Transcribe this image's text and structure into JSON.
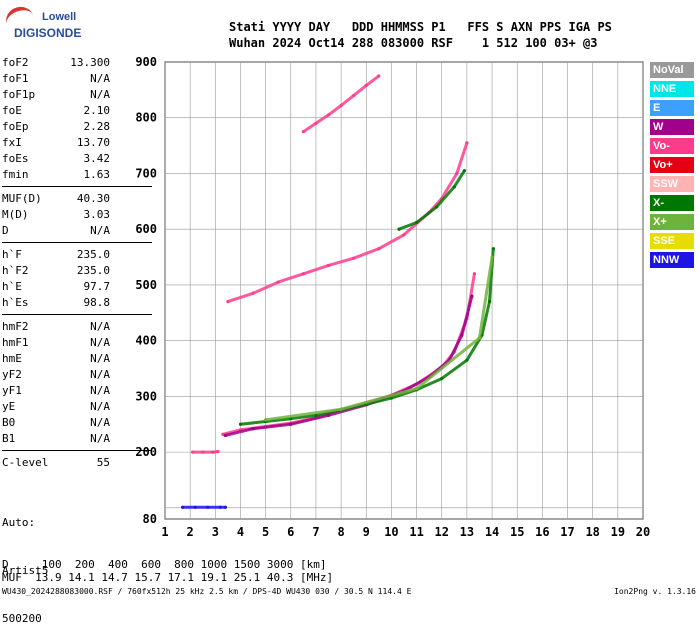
{
  "logo": {
    "brand": "Lowell",
    "product": "DIGISONDE"
  },
  "header": {
    "row1": "Stati YYYY DAY   DDD HHMMSS P1   FFS S AXN PPS IGA PS",
    "row2": "Wuhan 2024 Oct14 288 083000 RSF    1 512 100 03+ @3"
  },
  "params": [
    {
      "key": "foF2",
      "value": "13.300"
    },
    {
      "key": "foF1",
      "value": "N/A"
    },
    {
      "key": "foF1p",
      "value": "N/A"
    },
    {
      "key": "foE",
      "value": "2.10"
    },
    {
      "key": "foEp",
      "value": "2.28"
    },
    {
      "key": "fxI",
      "value": "13.70"
    },
    {
      "key": "foEs",
      "value": "3.42"
    },
    {
      "key": "fmin",
      "value": "1.63"
    },
    {
      "key": "MUF(D)",
      "value": "40.30"
    },
    {
      "key": "M(D)",
      "value": "3.03"
    },
    {
      "key": "D",
      "value": "N/A"
    },
    {
      "key": "h`F",
      "value": "235.0"
    },
    {
      "key": "h`F2",
      "value": "235.0"
    },
    {
      "key": "h`E",
      "value": "97.7"
    },
    {
      "key": "h`Es",
      "value": "98.8"
    },
    {
      "key": "hmF2",
      "value": "N/A"
    },
    {
      "key": "hmF1",
      "value": "N/A"
    },
    {
      "key": "hmE",
      "value": "N/A"
    },
    {
      "key": "yF2",
      "value": "N/A"
    },
    {
      "key": "yF1",
      "value": "N/A"
    },
    {
      "key": "yE",
      "value": "N/A"
    },
    {
      "key": "B0",
      "value": "N/A"
    },
    {
      "key": "B1",
      "value": "N/A"
    },
    {
      "key": "C-level",
      "value": "55"
    }
  ],
  "autoscaling": {
    "line1": "Auto:",
    "line2": "Artist5",
    "line3": "500200"
  },
  "footer": {
    "d_row": "D     100  200  400  600  800 1000 1500 3000 [km]",
    "muf_row": "MUF  13.9 14.1 14.7 15.7 17.1 19.1 25.1 40.3 [MHz]"
  },
  "meta": "WU430_2024288083000.RSF / 760fx512h 25 kHz 2.5 km / DPS-4D WU430 030 / 30.5 N 114.4 E",
  "version": "Ion2Png v. 1.3.16",
  "legend": [
    {
      "label": "NoVal",
      "color": "#999999"
    },
    {
      "label": "NNE",
      "color": "#00e5e5"
    },
    {
      "label": "E",
      "color": "#3ca0ff"
    },
    {
      "label": "W",
      "color": "#a0008c"
    },
    {
      "label": "Vo-",
      "color": "#ff3c8c"
    },
    {
      "label": "Vo+",
      "color": "#e60014"
    },
    {
      "label": "SSW",
      "color": "#ffb4b4"
    },
    {
      "label": "X-",
      "color": "#007800"
    },
    {
      "label": "X+",
      "color": "#6eb43c"
    },
    {
      "label": "SSE",
      "color": "#e6dc00"
    },
    {
      "label": "NNW",
      "color": "#1e14e6"
    }
  ],
  "chart_data": {
    "type": "scatter",
    "xlim": [
      1,
      20
    ],
    "ylim": [
      80,
      900
    ],
    "xticks": [
      1,
      2,
      3,
      4,
      5,
      6,
      7,
      8,
      9,
      10,
      11,
      12,
      13,
      14,
      15,
      16,
      17,
      18,
      19,
      20
    ],
    "yticks": [
      80,
      100,
      200,
      300,
      400,
      500,
      600,
      700,
      800,
      900
    ],
    "ytick_labels": [
      "80",
      "",
      "200",
      "300",
      "400",
      "500",
      "600",
      "700",
      "800",
      "900"
    ],
    "grid": true,
    "xlabel": "",
    "ylabel": "",
    "series": [
      {
        "name": "Vo-",
        "color": "#ff3c8c",
        "points": [
          [
            3.3,
            232
          ],
          [
            4,
            240
          ],
          [
            5,
            246
          ],
          [
            6,
            252
          ],
          [
            7,
            262
          ],
          [
            8,
            275
          ],
          [
            9,
            288
          ],
          [
            10,
            302
          ],
          [
            11,
            322
          ],
          [
            12,
            352
          ],
          [
            12.5,
            380
          ],
          [
            13,
            440
          ],
          [
            13.3,
            520
          ]
        ]
      },
      {
        "name": "W",
        "color": "#a0008c",
        "points": [
          [
            3.4,
            230
          ],
          [
            4.5,
            242
          ],
          [
            6,
            250
          ],
          [
            7.5,
            266
          ],
          [
            9,
            285
          ],
          [
            10.5,
            310
          ],
          [
            11.5,
            335
          ],
          [
            12.3,
            365
          ],
          [
            12.8,
            410
          ],
          [
            13.2,
            480
          ]
        ]
      },
      {
        "name": "X-",
        "color": "#007800",
        "points": [
          [
            4,
            250
          ],
          [
            5,
            255
          ],
          [
            6,
            260
          ],
          [
            7,
            266
          ],
          [
            8,
            276
          ],
          [
            9,
            286
          ],
          [
            10,
            297
          ],
          [
            11,
            312
          ],
          [
            12,
            332
          ],
          [
            13,
            365
          ],
          [
            13.6,
            410
          ],
          [
            13.9,
            470
          ],
          [
            14.05,
            565
          ]
        ]
      },
      {
        "name": "X+",
        "color": "#6eb43c",
        "points": [
          [
            5,
            258
          ],
          [
            8,
            277
          ],
          [
            11,
            314
          ],
          [
            13.5,
            405
          ],
          [
            14,
            550
          ]
        ]
      },
      {
        "name": "Vo- (2nd hop)",
        "color": "#ff3c8c",
        "points": [
          [
            3.5,
            470
          ],
          [
            4.5,
            485
          ],
          [
            5.5,
            505
          ],
          [
            6.5,
            520
          ],
          [
            7.5,
            535
          ],
          [
            8.5,
            548
          ],
          [
            9.5,
            565
          ],
          [
            10.5,
            590
          ],
          [
            11.5,
            630
          ],
          [
            12,
            655
          ],
          [
            12.6,
            700
          ],
          [
            13,
            755
          ]
        ]
      },
      {
        "name": "X- (2nd hop)",
        "color": "#007800",
        "points": [
          [
            10.3,
            600
          ],
          [
            11,
            612
          ],
          [
            11.8,
            640
          ],
          [
            12.5,
            676
          ],
          [
            12.9,
            705
          ]
        ]
      },
      {
        "name": "Vo- (3rd hop)",
        "color": "#ff3c8c",
        "points": [
          [
            6.5,
            775
          ],
          [
            7,
            790
          ],
          [
            7.5,
            805
          ],
          [
            8,
            822
          ],
          [
            8.5,
            840
          ],
          [
            9,
            858
          ],
          [
            9.5,
            875
          ]
        ]
      },
      {
        "name": "Es",
        "color": "#1e14e6",
        "points": [
          [
            1.7,
            101
          ],
          [
            2.2,
            101
          ],
          [
            2.7,
            101
          ],
          [
            3.2,
            101
          ],
          [
            3.4,
            101
          ]
        ]
      },
      {
        "name": "E",
        "color": "#ff3c8c",
        "points": [
          [
            2.1,
            200
          ],
          [
            2.5,
            200
          ],
          [
            2.9,
            200
          ],
          [
            3.1,
            201
          ]
        ]
      }
    ]
  }
}
